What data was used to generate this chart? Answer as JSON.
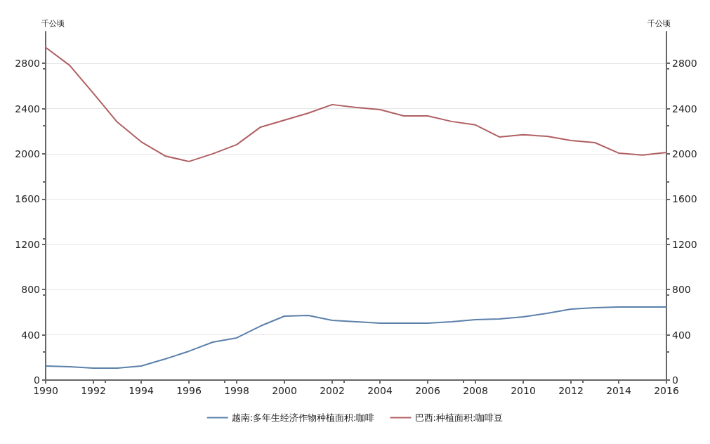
{
  "chart_data": {
    "type": "line",
    "ylabel": "千公顷",
    "y2label": "千公顷",
    "x": [
      1990,
      1991,
      1992,
      1993,
      1994,
      1995,
      1996,
      1997,
      1998,
      1999,
      2000,
      2001,
      2002,
      2003,
      2004,
      2005,
      2006,
      2007,
      2008,
      2009,
      2010,
      2011,
      2012,
      2013,
      2014,
      2015,
      2016
    ],
    "series": [
      {
        "name": "越南:多年生经济作物种植面积:咖啡",
        "color": "#5b80aa",
        "values": [
          124,
          118,
          106,
          106,
          124,
          186,
          255,
          335,
          373,
          478,
          565,
          571,
          528,
          516,
          503,
          503,
          503,
          516,
          534,
          540,
          559,
          590,
          627,
          640,
          646,
          646,
          646
        ]
      },
      {
        "name": "巴西:种植面积:咖啡豆",
        "color": "#b05f62",
        "values": [
          2940,
          2783,
          2534,
          2280,
          2106,
          1981,
          1932,
          2000,
          2081,
          2236,
          2298,
          2360,
          2435,
          2410,
          2391,
          2335,
          2335,
          2286,
          2255,
          2149,
          2168,
          2155,
          2118,
          2099,
          2006,
          1988,
          2012
        ]
      }
    ],
    "xlim": [
      1990,
      2016
    ],
    "xticks": [
      1990,
      1992,
      1994,
      1996,
      1998,
      2000,
      2002,
      2004,
      2006,
      2008,
      2010,
      2012,
      2014,
      2016
    ],
    "ylim": [
      0,
      3080
    ],
    "yticks": [
      0,
      400,
      800,
      1200,
      1600,
      2000,
      2400,
      2800
    ],
    "y2lim": [
      0,
      3080
    ],
    "y2ticks": [
      0,
      400,
      800,
      1200,
      1600,
      2000,
      2400,
      2800
    ],
    "grid": "y",
    "legend": "bottom",
    "marker": "none",
    "line_style": "solid"
  }
}
